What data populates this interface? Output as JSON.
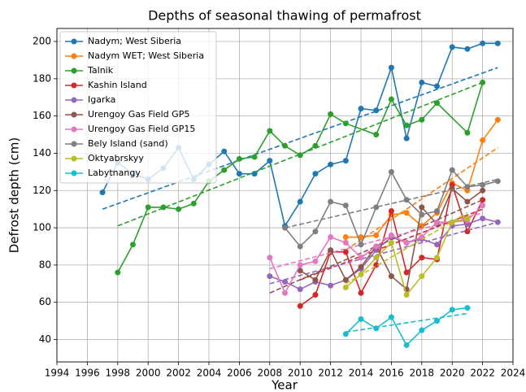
{
  "chart_data": {
    "type": "line",
    "title": "Depths of seasonal thawing of permafrost",
    "x_label": "Year",
    "y_label": "Defrost depth (cm)",
    "xlim": [
      1994,
      2024
    ],
    "xticks": [
      1994,
      1996,
      1998,
      2000,
      2002,
      2004,
      2006,
      2008,
      2010,
      2012,
      2014,
      2016,
      2018,
      2020,
      2022,
      2024
    ],
    "ylim": [
      28,
      207
    ],
    "yticks": [
      40,
      60,
      80,
      100,
      120,
      140,
      160,
      180,
      200
    ],
    "grid": true,
    "legend": "upper left",
    "series": [
      {
        "name": "Nadym; West Siberia",
        "color": "#1f77b4",
        "x": [
          1997,
          1998,
          1999,
          2000,
          2001,
          2002,
          2003,
          2004,
          2005,
          2006,
          2007,
          2008,
          2009,
          2010,
          2011,
          2012,
          2013,
          2014,
          2015,
          2016,
          2017,
          2018,
          2019,
          2020,
          2021,
          2022,
          2023
        ],
        "values": [
          119,
          135,
          129,
          126,
          132,
          143,
          126,
          134,
          141,
          129,
          129,
          136,
          101,
          114,
          129,
          134,
          136,
          164,
          163,
          186,
          148,
          178,
          176,
          197,
          196,
          199,
          199
        ],
        "trend": {
          "x": [
            1997,
            2023
          ],
          "values": [
            110,
            186
          ]
        }
      },
      {
        "name": "Nadym WET; West Siberia",
        "color": "#ff7f0e",
        "x": [
          2013,
          2014,
          2015,
          2016,
          2017,
          2018,
          2019,
          2020,
          2021,
          2022,
          2023
        ],
        "values": [
          95,
          95,
          96,
          107,
          108,
          101,
          108,
          124,
          120,
          147,
          158
        ],
        "trend": {
          "x": [
            2013,
            2023
          ],
          "values": [
            88,
            143
          ]
        }
      },
      {
        "name": "Talnik",
        "color": "#2ca02c",
        "x": [
          1998,
          1999,
          2000,
          2001,
          2002,
          2003,
          2004,
          2005,
          2006,
          2007,
          2008,
          2009,
          2010,
          2011,
          2012,
          2013,
          2015,
          2016,
          2017,
          2018,
          2019,
          2021,
          2022
        ],
        "values": [
          76,
          91,
          111,
          111,
          110,
          113,
          125,
          131,
          137,
          138,
          152,
          144,
          139,
          144,
          161,
          156,
          150,
          169,
          155,
          158,
          167,
          151,
          178
        ],
        "trend": {
          "x": [
            1998,
            2022
          ],
          "values": [
            101,
            178
          ]
        }
      },
      {
        "name": "Kashin Island",
        "color": "#d62728",
        "x": [
          2010,
          2011,
          2012,
          2013,
          2014,
          2015,
          2016,
          2017,
          2018,
          2019,
          2020,
          2021,
          2022
        ],
        "values": [
          58,
          64,
          87,
          87,
          65,
          80,
          109,
          76,
          84,
          83,
          123,
          98,
          115
        ],
        "trend": {
          "x": [
            2010,
            2022
          ],
          "values": [
            72,
            110
          ]
        }
      },
      {
        "name": "Igarka",
        "color": "#9467bd",
        "x": [
          2008,
          2009,
          2010,
          2011,
          2012,
          2013,
          2014,
          2015,
          2016,
          2017,
          2018,
          2019,
          2020,
          2021,
          2022,
          2023
        ],
        "values": [
          74,
          71,
          67,
          71,
          69,
          72,
          78,
          88,
          95,
          92,
          94,
          91,
          101,
          102,
          105,
          103
        ],
        "trend": {
          "x": [
            2008,
            2023
          ],
          "values": [
            70,
            103
          ]
        }
      },
      {
        "name": "Urengoy Gas Field GP5",
        "color": "#8c564b",
        "x": [
          2010,
          2011,
          2012,
          2013,
          2014,
          2015,
          2016,
          2017,
          2018,
          2019,
          2020,
          2021,
          2022
        ],
        "values": [
          77,
          72,
          88,
          72,
          79,
          90,
          74,
          67,
          111,
          102,
          121,
          114,
          120
        ],
        "trend": {
          "x": [
            2008,
            2022
          ],
          "values": [
            65,
            115
          ]
        }
      },
      {
        "name": "Urengoy Gas Field GP15",
        "color": "#e377c2",
        "x": [
          2008,
          2009,
          2010,
          2011,
          2012,
          2013,
          2014,
          2015,
          2016,
          2017,
          2018,
          2019,
          2020,
          2021,
          2022
        ],
        "values": [
          84,
          65,
          80,
          82,
          95,
          92,
          84,
          90,
          96,
          92,
          95,
          103,
          103,
          104,
          112
        ],
        "trend": {
          "x": [
            2008,
            2022
          ],
          "values": [
            78,
            108
          ]
        }
      },
      {
        "name": "Bely Island (sand)",
        "color": "#7f7f7f",
        "x": [
          2009,
          2010,
          2011,
          2012,
          2013,
          2014,
          2015,
          2016,
          2017,
          2018,
          2019,
          2020,
          2021,
          2022,
          2023
        ],
        "values": [
          100,
          90,
          98,
          114,
          112,
          91,
          111,
          130,
          115,
          107,
          109,
          131,
          122,
          123,
          125
        ],
        "trend": {
          "x": [
            2009,
            2023
          ],
          "values": [
            100,
            126
          ]
        }
      },
      {
        "name": "Oktyabrskyy",
        "color": "#bcbd22",
        "x": [
          2013,
          2014,
          2015,
          2016,
          2017,
          2018,
          2019,
          2020,
          2021
        ],
        "values": [
          68,
          75,
          84,
          92,
          64,
          74,
          84,
          103,
          105
        ],
        "trend": {
          "x": [
            2013,
            2021
          ],
          "values": [
            70,
            108
          ]
        }
      },
      {
        "name": "Labytnangy",
        "color": "#17becf",
        "x": [
          2013,
          2014,
          2015,
          2016,
          2017,
          2018,
          2019,
          2020,
          2021
        ],
        "values": [
          43,
          51,
          46,
          52,
          37,
          45,
          50,
          56,
          57
        ],
        "trend": {
          "x": [
            2013,
            2021
          ],
          "values": [
            44,
            54
          ]
        }
      }
    ]
  }
}
